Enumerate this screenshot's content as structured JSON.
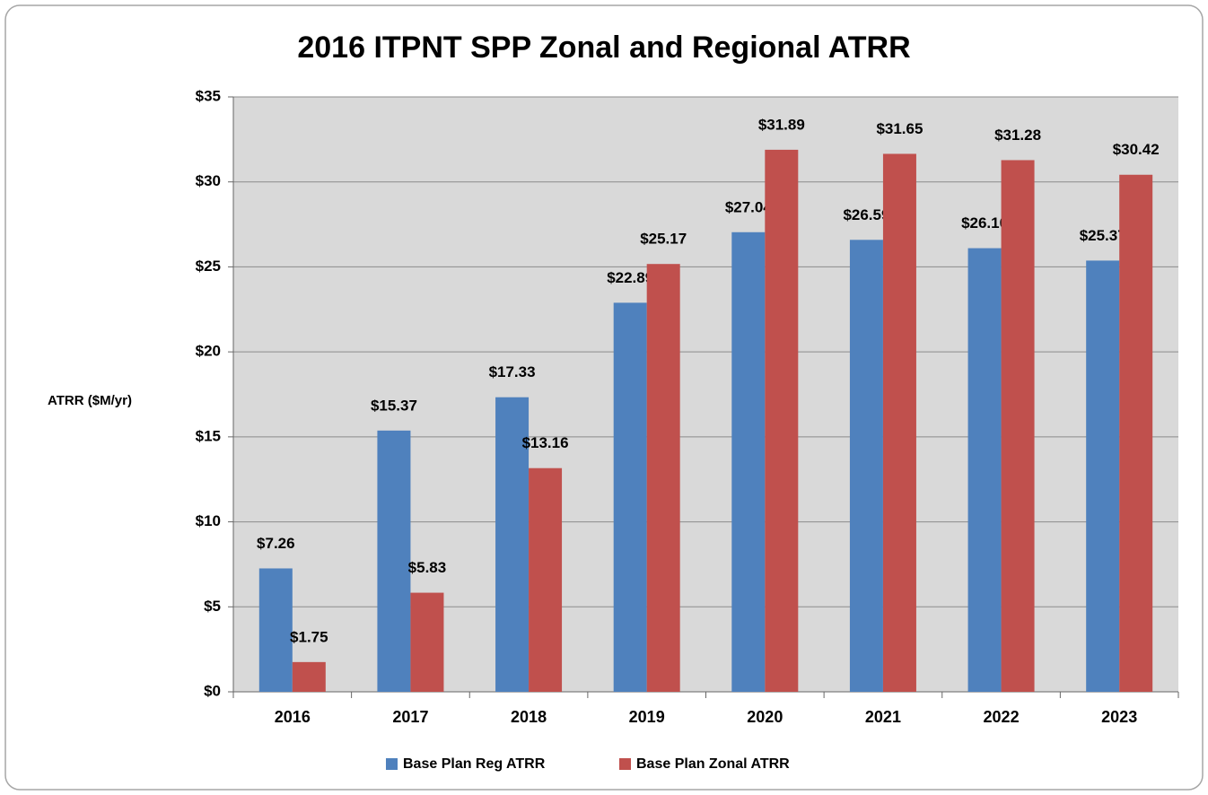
{
  "chart_data": {
    "type": "bar",
    "title": "2016 ITPNT SPP Zonal and Regional ATRR",
    "y_label": "ATRR ($M/yr)",
    "categories": [
      "2016",
      "2017",
      "2018",
      "2019",
      "2020",
      "2021",
      "2022",
      "2023"
    ],
    "series": [
      {
        "name": "Base Plan Reg ATRR",
        "color": "#4f81bd",
        "values": [
          7.26,
          15.37,
          17.33,
          22.89,
          27.04,
          26.59,
          26.1,
          25.37
        ],
        "value_labels": [
          "$7.26",
          "$15.37",
          "$17.33",
          "$22.89",
          "$27.04",
          "$26.59",
          "$26.10",
          "$25.37"
        ]
      },
      {
        "name": "Base Plan Zonal ATRR",
        "color": "#c0504d",
        "values": [
          1.75,
          5.83,
          13.16,
          25.17,
          31.89,
          31.65,
          31.28,
          30.42
        ],
        "value_labels": [
          "$1.75",
          "$5.83",
          "$13.16",
          "$25.17",
          "$31.89",
          "$31.65",
          "$31.28",
          "$30.42"
        ]
      }
    ],
    "ylim": [
      0,
      35
    ],
    "yticks": [
      {
        "value": 0,
        "label": "$0"
      },
      {
        "value": 5,
        "label": "$5"
      },
      {
        "value": 10,
        "label": "$10"
      },
      {
        "value": 15,
        "label": "$15"
      },
      {
        "value": 20,
        "label": "$20"
      },
      {
        "value": 25,
        "label": "$25"
      },
      {
        "value": 30,
        "label": "$30"
      },
      {
        "value": 35,
        "label": "$35"
      }
    ],
    "grid": true,
    "legend": "bottom"
  }
}
